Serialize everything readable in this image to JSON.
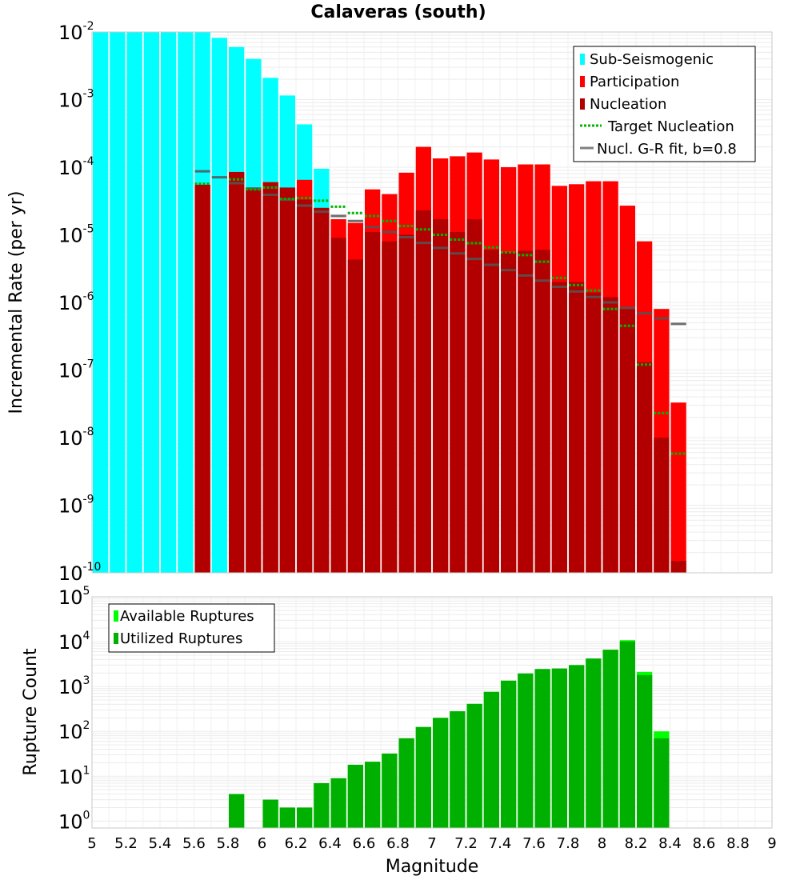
{
  "chart_data": [
    {
      "type": "bar",
      "title": "Calaveras (south)",
      "ylabel": "Incremental Rate (per yr)",
      "xlabel": "",
      "xlim": [
        5,
        9
      ],
      "ylim": [
        1e-10,
        0.01
      ],
      "yscale": "log",
      "bin_width": 0.1,
      "grid": true,
      "legend_position": "top-right",
      "colors": {
        "sub_seismogenic": "#00ffff",
        "participation": "#ff0000",
        "nucleation": "#b20000",
        "target_nucleation": "#00b400",
        "gr_fit": "#808080"
      },
      "legend": [
        "Sub-Seismogenic",
        "Participation",
        "Nucleation",
        "Target Nucleation",
        "Nucl. G-R fit, b=0.8"
      ],
      "series": [
        {
          "name": "Sub-Seismogenic",
          "x": [
            5.05,
            5.15,
            5.25,
            5.35,
            5.45,
            5.55,
            5.65,
            5.75,
            5.85,
            5.95,
            6.05,
            6.15,
            6.25,
            6.35
          ],
          "values": [
            0.01,
            0.01,
            0.01,
            0.01,
            0.01,
            0.01,
            0.01,
            0.0082,
            0.006,
            0.004,
            0.0021,
            0.00115,
            0.00043,
            9.5e-05
          ]
        },
        {
          "name": "Participation",
          "x": [
            5.65,
            5.85,
            5.95,
            6.05,
            6.15,
            6.25,
            6.35,
            6.45,
            6.55,
            6.65,
            6.75,
            6.85,
            6.95,
            7.05,
            7.15,
            7.25,
            7.35,
            7.45,
            7.55,
            7.65,
            7.75,
            7.85,
            7.95,
            8.05,
            8.15,
            8.25,
            8.35,
            8.45
          ],
          "values": [
            5.5e-05,
            8.5e-05,
            5e-05,
            6e-05,
            5e-05,
            6.5e-05,
            2.5e-05,
            1.7e-05,
            1.5e-05,
            4.7e-05,
            4e-05,
            8.3e-05,
            0.0002,
            0.000135,
            0.000145,
            0.000165,
            0.00013,
            0.0001,
            0.00011,
            0.00011,
            5.3e-05,
            5.6e-05,
            6.2e-05,
            6.2e-05,
            2.7e-05,
            8e-06,
            8e-07,
            3.3e-08
          ]
        },
        {
          "name": "Nucleation",
          "x": [
            5.65,
            5.85,
            5.95,
            6.05,
            6.15,
            6.25,
            6.35,
            6.45,
            6.55,
            6.65,
            6.75,
            6.85,
            6.95,
            7.05,
            7.15,
            7.25,
            7.35,
            7.45,
            7.55,
            7.65,
            7.75,
            7.85,
            7.95,
            8.05,
            8.15,
            8.25,
            8.35,
            8.45
          ],
          "values": [
            5.5e-05,
            8.5e-05,
            5e-05,
            6e-05,
            5e-05,
            3.3e-05,
            2.5e-05,
            9e-06,
            4.3e-06,
            1.1e-05,
            8e-06,
            1e-05,
            2.3e-05,
            1.7e-05,
            1.1e-05,
            1.7e-05,
            6e-06,
            5.5e-06,
            5.8e-06,
            6e-06,
            2e-06,
            2e-06,
            1.4e-06,
            1.2e-06,
            8e-07,
            1.3e-07,
            1e-08,
            1.5e-10
          ]
        },
        {
          "name": "Target Nucleation",
          "x": [
            5.65,
            5.85,
            5.95,
            6.05,
            6.15,
            6.25,
            6.35,
            6.45,
            6.55,
            6.65,
            6.75,
            6.85,
            6.95,
            7.05,
            7.15,
            7.25,
            7.35,
            7.45,
            7.55,
            7.65,
            7.75,
            7.85,
            7.95,
            8.05,
            8.15,
            8.25,
            8.35,
            8.45
          ],
          "values": [
            5.7e-05,
            6.6e-05,
            4.7e-05,
            5e-05,
            3.4e-05,
            3.5e-05,
            3.2e-05,
            2.6e-05,
            2.1e-05,
            1.9e-05,
            1.6e-05,
            1.35e-05,
            1.2e-05,
            1e-05,
            8.5e-06,
            7.5e-06,
            6.5e-06,
            5.5e-06,
            5e-06,
            4e-06,
            2.3e-06,
            1.8e-06,
            1.5e-06,
            8e-07,
            4.5e-07,
            1.2e-07,
            2.3e-08,
            5.8e-09
          ]
        },
        {
          "name": "Nucl. G-R fit, b=0.8",
          "x": [
            5.65,
            5.75,
            5.85,
            5.95,
            6.05,
            6.15,
            6.25,
            6.35,
            6.45,
            6.55,
            6.65,
            6.75,
            6.85,
            6.95,
            7.05,
            7.15,
            7.25,
            7.35,
            7.45,
            7.55,
            7.65,
            7.75,
            7.85,
            7.95,
            8.05,
            8.15,
            8.25,
            8.35,
            8.45
          ],
          "values": [
            8.7e-05,
            7.1e-05,
            5.8e-05,
            4.8e-05,
            3.9e-05,
            3.3e-05,
            2.7e-05,
            2.2e-05,
            1.9e-05,
            1.6e-05,
            1.3e-05,
            1.1e-05,
            9.2e-06,
            7.6e-06,
            6.4e-06,
            5.3e-06,
            4.4e-06,
            3.6e-06,
            3e-06,
            2.5e-06,
            2.1e-06,
            1.7e-06,
            1.45e-06,
            1.2e-06,
            1e-06,
            8.3e-07,
            6.9e-07,
            5.8e-07,
            4.8e-07
          ]
        }
      ]
    },
    {
      "type": "bar",
      "title": "",
      "xlabel": "Magnitude",
      "ylabel": "Rupture Count",
      "xlim": [
        5,
        9
      ],
      "ylim": [
        0.7,
        100000
      ],
      "yscale": "log",
      "bin_width": 0.1,
      "grid": true,
      "legend_position": "top-left",
      "colors": {
        "available": "#00ff00",
        "utilized": "#00b000"
      },
      "legend": [
        "Available Ruptures",
        "Utilized Ruptures"
      ],
      "x_ticks": [
        "5",
        "5.2",
        "5.4",
        "5.6",
        "5.8",
        "6",
        "6.2",
        "6.4",
        "6.6",
        "6.8",
        "7",
        "7.2",
        "7.4",
        "7.6",
        "7.8",
        "8",
        "8.2",
        "8.4",
        "8.6",
        "8.8",
        "9"
      ],
      "series": [
        {
          "name": "Available Ruptures",
          "x": [
            5.85,
            6.05,
            6.15,
            6.25,
            6.35,
            6.45,
            6.55,
            6.65,
            6.75,
            6.85,
            6.95,
            7.05,
            7.15,
            7.25,
            7.35,
            7.45,
            7.55,
            7.65,
            7.75,
            7.85,
            7.95,
            8.05,
            8.15,
            8.25,
            8.35
          ],
          "values": [
            4,
            3,
            2,
            2,
            7,
            9,
            18,
            21,
            32,
            70,
            125,
            200,
            280,
            410,
            760,
            1350,
            1950,
            2450,
            2520,
            3000,
            4200,
            6600,
            10800,
            2120,
            100
          ]
        },
        {
          "name": "Utilized Ruptures",
          "x": [
            5.85,
            6.05,
            6.15,
            6.25,
            6.35,
            6.45,
            6.55,
            6.65,
            6.75,
            6.85,
            6.95,
            7.05,
            7.15,
            7.25,
            7.35,
            7.45,
            7.55,
            7.65,
            7.75,
            7.85,
            7.95,
            8.05,
            8.15,
            8.25,
            8.35
          ],
          "values": [
            4,
            3,
            2,
            2,
            7,
            9,
            18,
            21,
            32,
            70,
            125,
            200,
            280,
            410,
            760,
            1350,
            1950,
            2450,
            2520,
            3000,
            4200,
            6600,
            10100,
            1800,
            70
          ]
        }
      ]
    }
  ]
}
